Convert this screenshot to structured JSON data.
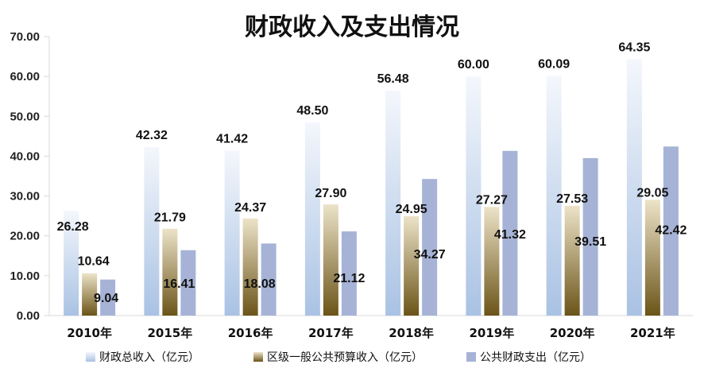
{
  "chart_data": {
    "type": "bar",
    "title": "财政收入及支出情况",
    "categories": [
      "2010年",
      "2015年",
      "2016年",
      "2017年",
      "2018年",
      "2019年",
      "2020年",
      "2021年"
    ],
    "series": [
      {
        "name": "财政总收入（亿元）",
        "values": [
          26.28,
          42.32,
          41.42,
          48.5,
          56.48,
          60.0,
          60.09,
          64.35
        ],
        "color": "#c3d4ea"
      },
      {
        "name": "区级一般公共预算收入（亿元）",
        "values": [
          10.64,
          21.79,
          24.37,
          27.9,
          24.95,
          27.27,
          27.53,
          29.05
        ],
        "color": "#a8925a"
      },
      {
        "name": "公共财政支出（亿元）",
        "values": [
          9.04,
          16.41,
          18.08,
          21.12,
          34.27,
          41.32,
          39.51,
          42.42
        ],
        "color": "#a4b2d4"
      }
    ],
    "yticks": [
      "0.00",
      "10.00",
      "20.00",
      "30.00",
      "40.00",
      "50.00",
      "60.00",
      "70.00"
    ],
    "ylim": [
      0,
      70
    ],
    "legend_position": "bottom",
    "grid": false
  }
}
